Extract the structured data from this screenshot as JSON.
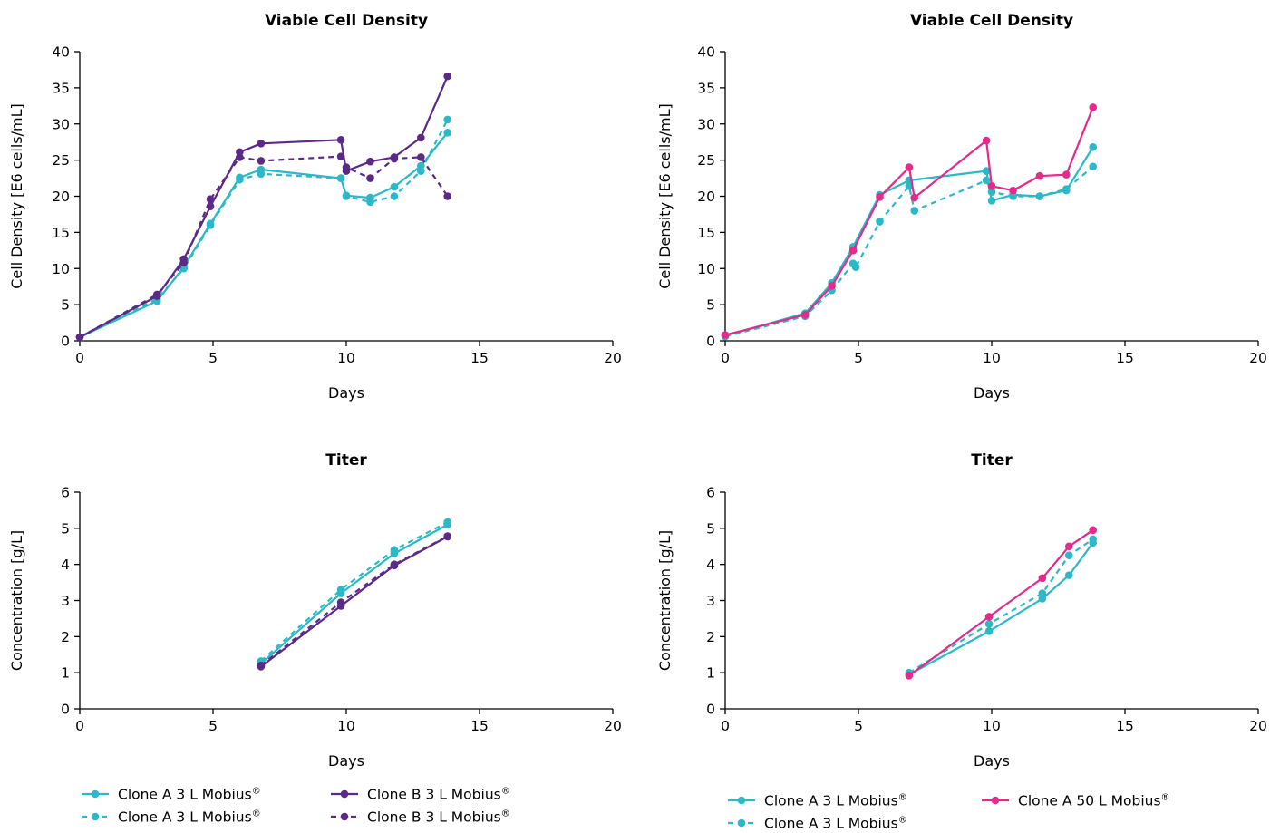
{
  "colors": {
    "teal": "#2cb8c6",
    "purple": "#5b2a86",
    "pink": "#e22b8a",
    "axis": "#000000"
  },
  "chart_data": [
    {
      "id": "tl",
      "type": "line",
      "title": "Viable Cell Density",
      "xlabel": "Days",
      "ylabel": "Cell Density [E6 cells/mL]",
      "xlim": [
        0,
        20
      ],
      "ylim": [
        0,
        40
      ],
      "xticks": [
        0,
        5,
        10,
        15,
        20
      ],
      "yticks": [
        0,
        5,
        10,
        15,
        20,
        25,
        30,
        35,
        40
      ],
      "series": [
        {
          "name": "Clone A 3 L Mobius®",
          "color": "#2cb8c6",
          "dash": false,
          "x": [
            0,
            2.9,
            3.9,
            4.9,
            6,
            6.8,
            9.8,
            10,
            10.9,
            11.8,
            12.8,
            13.8
          ],
          "y": [
            0.5,
            5.5,
            10.2,
            16.2,
            22.6,
            23.7,
            22.5,
            20.1,
            19.8,
            21.3,
            24.2,
            28.8
          ]
        },
        {
          "name": "Clone A 3 L Mobius®",
          "color": "#2cb8c6",
          "dash": true,
          "x": [
            0,
            2.9,
            3.9,
            4.9,
            6,
            6.8,
            9.8,
            10,
            10.9,
            11.8,
            12.8,
            13.8
          ],
          "y": [
            0.5,
            5.8,
            10.0,
            16.0,
            22.3,
            23.1,
            22.5,
            20.0,
            19.2,
            20.0,
            23.5,
            30.6
          ]
        },
        {
          "name": "Clone B 3 L Mobius®",
          "color": "#5b2a86",
          "dash": false,
          "x": [
            0,
            2.9,
            3.9,
            4.9,
            6,
            6.8,
            9.8,
            10,
            10.9,
            11.8,
            12.8,
            13.8
          ],
          "y": [
            0.5,
            6.2,
            11.3,
            18.6,
            26.1,
            27.3,
            27.8,
            23.5,
            24.8,
            25.4,
            28.1,
            36.6
          ]
        },
        {
          "name": "Clone B 3 L Mobius®",
          "color": "#5b2a86",
          "dash": true,
          "x": [
            0,
            2.9,
            3.9,
            4.9,
            6,
            6.8,
            9.8,
            10,
            10.9,
            11.8,
            12.8,
            13.8
          ],
          "y": [
            0.5,
            6.4,
            10.8,
            19.6,
            25.4,
            24.9,
            25.5,
            24.0,
            22.5,
            25.2,
            25.4,
            20.0
          ]
        }
      ]
    },
    {
      "id": "tr",
      "type": "line",
      "title": "Viable Cell Density",
      "xlabel": "Days",
      "ylabel": "Cell Density [E6 cells/mL]",
      "xlim": [
        0,
        20
      ],
      "ylim": [
        0,
        40
      ],
      "xticks": [
        0,
        5,
        10,
        15,
        20
      ],
      "yticks": [
        0,
        5,
        10,
        15,
        20,
        25,
        30,
        35,
        40
      ],
      "series": [
        {
          "name": "Clone A 3 L Mobius®",
          "color": "#2cb8c6",
          "dash": false,
          "x": [
            0,
            3,
            4,
            4.8,
            5.8,
            6.9,
            9.8,
            10,
            10.8,
            11.8,
            12.8,
            13.8
          ],
          "y": [
            0.7,
            3.8,
            8.0,
            13.0,
            20.2,
            22.2,
            23.5,
            19.4,
            20.2,
            20.0,
            20.8,
            26.8
          ]
        },
        {
          "name": "Clone A 3 L Mobius®",
          "color": "#2cb8c6",
          "dash": true,
          "x": [
            0,
            3,
            4,
            4.8,
            4.9,
            5.8,
            6.9,
            7.1,
            9.8,
            10,
            10.8,
            11.8,
            12.8,
            13.8
          ],
          "y": [
            0.6,
            3.4,
            7.0,
            10.7,
            10.2,
            16.5,
            21.4,
            18.0,
            22.2,
            20.6,
            20.0,
            20.0,
            21.0,
            24.1
          ]
        },
        {
          "name": "Clone A 50 L Mobius®",
          "color": "#e22b8a",
          "dash": false,
          "x": [
            0,
            3,
            4,
            4.8,
            5.8,
            6.9,
            7.1,
            9.8,
            10,
            10.8,
            11.8,
            12.8,
            13.8
          ],
          "y": [
            0.8,
            3.6,
            7.6,
            12.5,
            19.9,
            24.0,
            19.8,
            27.7,
            21.4,
            20.8,
            22.8,
            23.0,
            32.3
          ]
        }
      ]
    },
    {
      "id": "bl",
      "type": "line",
      "title": "Titer",
      "xlabel": "Days",
      "ylabel": "Concentration [g/L]",
      "xlim": [
        0,
        20
      ],
      "ylim": [
        0,
        6
      ],
      "xticks": [
        0,
        5,
        10,
        15,
        20
      ],
      "yticks": [
        0,
        1,
        2,
        3,
        4,
        5,
        6
      ],
      "series": [
        {
          "name": "Clone A 3 L Mobius®",
          "color": "#2cb8c6",
          "dash": false,
          "x": [
            6.8,
            9.8,
            11.8,
            13.8
          ],
          "y": [
            1.25,
            3.2,
            4.3,
            5.1
          ]
        },
        {
          "name": "Clone A 3 L Mobius®",
          "color": "#2cb8c6",
          "dash": true,
          "x": [
            6.8,
            9.8,
            11.8,
            13.8
          ],
          "y": [
            1.32,
            3.3,
            4.4,
            5.17
          ]
        },
        {
          "name": "Clone B 3 L Mobius®",
          "color": "#5b2a86",
          "dash": false,
          "x": [
            6.8,
            9.8,
            11.8,
            13.8
          ],
          "y": [
            1.17,
            2.85,
            3.97,
            4.77
          ]
        },
        {
          "name": "Clone B 3 L Mobius®",
          "color": "#5b2a86",
          "dash": true,
          "x": [
            6.8,
            9.8,
            11.8,
            13.8
          ],
          "y": [
            1.2,
            2.95,
            4.0,
            4.78
          ]
        }
      ]
    },
    {
      "id": "br",
      "type": "line",
      "title": "Titer",
      "xlabel": "Days",
      "ylabel": "Concentration [g/L]",
      "xlim": [
        0,
        20
      ],
      "ylim": [
        0,
        6
      ],
      "xticks": [
        0,
        5,
        10,
        15,
        20
      ],
      "yticks": [
        0,
        1,
        2,
        3,
        4,
        5,
        6
      ],
      "series": [
        {
          "name": "Clone A 3 L Mobius®",
          "color": "#2cb8c6",
          "dash": false,
          "x": [
            6.9,
            9.9,
            11.9,
            12.9,
            13.8
          ],
          "y": [
            0.95,
            2.15,
            3.05,
            3.7,
            4.6
          ]
        },
        {
          "name": "Clone A 3 L Mobius®",
          "color": "#2cb8c6",
          "dash": true,
          "x": [
            6.9,
            9.9,
            11.9,
            12.9,
            13.8
          ],
          "y": [
            1.0,
            2.35,
            3.2,
            4.25,
            4.7
          ]
        },
        {
          "name": "Clone A 50 L Mobius®",
          "color": "#e22b8a",
          "dash": false,
          "x": [
            6.9,
            9.9,
            11.9,
            12.9,
            13.8
          ],
          "y": [
            0.92,
            2.55,
            3.62,
            4.5,
            4.95
          ]
        }
      ]
    }
  ],
  "legends": {
    "left": [
      {
        "label": "Clone A 3 L Mobius",
        "sup": "®",
        "color": "#2cb8c6",
        "dash": false
      },
      {
        "label": "Clone A 3 L Mobius",
        "sup": "®",
        "color": "#2cb8c6",
        "dash": true
      },
      {
        "label": "Clone B 3 L Mobius",
        "sup": "®",
        "color": "#5b2a86",
        "dash": false
      },
      {
        "label": "Clone B 3 L Mobius",
        "sup": "®",
        "color": "#5b2a86",
        "dash": true
      }
    ],
    "right": [
      {
        "label": "Clone A 3 L Mobius",
        "sup": "®",
        "color": "#2cb8c6",
        "dash": false
      },
      {
        "label": "Clone A 3 L Mobius",
        "sup": "®",
        "color": "#2cb8c6",
        "dash": true
      },
      {
        "label": "Clone A 50 L Mobius",
        "sup": "®",
        "color": "#e22b8a",
        "dash": false
      }
    ]
  }
}
